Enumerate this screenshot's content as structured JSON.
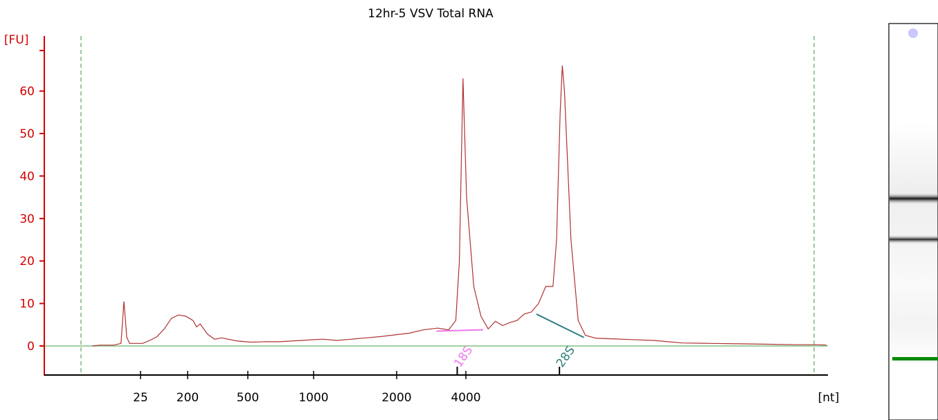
{
  "chart_data": {
    "type": "line",
    "title": "12hr-5 VSV Total RNA",
    "ylabel": "[FU]",
    "xlabel": "[nt]",
    "ylim": [
      -7,
      73
    ],
    "yticks": [
      0,
      10,
      20,
      30,
      40,
      50,
      60
    ],
    "xticks": [
      "25",
      "200",
      "500",
      "1000",
      "2000",
      "4000"
    ],
    "series": [
      {
        "values": [
          [
            0.08,
            0.0
          ],
          [
            0.09,
            0.2
          ],
          [
            0.11,
            0.2
          ],
          [
            0.12,
            0.6
          ],
          [
            0.122,
            5.5
          ],
          [
            0.124,
            10.5
          ],
          [
            0.126,
            6.5
          ],
          [
            0.128,
            2.0
          ],
          [
            0.132,
            0.6
          ],
          [
            0.15,
            0.6
          ],
          [
            0.16,
            1.3
          ],
          [
            0.17,
            2.2
          ],
          [
            0.18,
            4.0
          ],
          [
            0.19,
            6.5
          ],
          [
            0.2,
            7.3
          ],
          [
            0.21,
            7.0
          ],
          [
            0.22,
            6.0
          ],
          [
            0.225,
            4.5
          ],
          [
            0.23,
            5.2
          ],
          [
            0.24,
            2.8
          ],
          [
            0.25,
            1.6
          ],
          [
            0.26,
            1.9
          ],
          [
            0.28,
            1.2
          ],
          [
            0.3,
            0.9
          ],
          [
            0.32,
            1.0
          ],
          [
            0.34,
            1.0
          ],
          [
            0.36,
            1.2
          ],
          [
            0.38,
            1.4
          ],
          [
            0.4,
            1.6
          ],
          [
            0.42,
            1.3
          ],
          [
            0.44,
            1.6
          ],
          [
            0.46,
            1.9
          ],
          [
            0.48,
            2.2
          ],
          [
            0.5,
            2.6
          ],
          [
            0.52,
            3.0
          ],
          [
            0.54,
            3.8
          ],
          [
            0.56,
            4.2
          ],
          [
            0.575,
            3.8
          ],
          [
            0.585,
            6.0
          ],
          [
            0.59,
            20.0
          ],
          [
            0.595,
            63.0
          ],
          [
            0.6,
            35.0
          ],
          [
            0.61,
            14.0
          ],
          [
            0.62,
            7.0
          ],
          [
            0.63,
            4.0
          ],
          [
            0.64,
            5.8
          ],
          [
            0.65,
            4.8
          ],
          [
            0.66,
            5.5
          ],
          [
            0.67,
            6.0
          ],
          [
            0.68,
            7.5
          ],
          [
            0.69,
            8.0
          ],
          [
            0.7,
            10.0
          ],
          [
            0.71,
            14.0
          ],
          [
            0.72,
            14.0
          ],
          [
            0.725,
            25.0
          ],
          [
            0.73,
            55.0
          ],
          [
            0.733,
            66.0
          ],
          [
            0.736,
            60.0
          ],
          [
            0.745,
            25.0
          ],
          [
            0.755,
            6.0
          ],
          [
            0.765,
            2.5
          ],
          [
            0.78,
            1.8
          ],
          [
            0.8,
            1.7
          ],
          [
            0.83,
            1.5
          ],
          [
            0.86,
            1.3
          ],
          [
            0.88,
            1.0
          ],
          [
            0.9,
            0.7
          ],
          [
            0.94,
            0.6
          ],
          [
            0.98,
            0.5
          ],
          [
            1.02,
            0.4
          ],
          [
            1.06,
            0.3
          ],
          [
            1.09,
            0.3
          ],
          [
            1.1,
            0.2
          ]
        ]
      }
    ],
    "annotations": [
      {
        "label": "18S",
        "color": "#ee77ee",
        "tick_x": 0.587,
        "segment": [
          [
            0.558,
            3.5
          ],
          [
            0.623,
            3.8
          ]
        ]
      },
      {
        "label": "28S",
        "color": "#2f7f7f",
        "tick_x": 0.729,
        "segment": [
          [
            0.697,
            7.5
          ],
          [
            0.763,
            2.0
          ]
        ]
      }
    ]
  }
}
